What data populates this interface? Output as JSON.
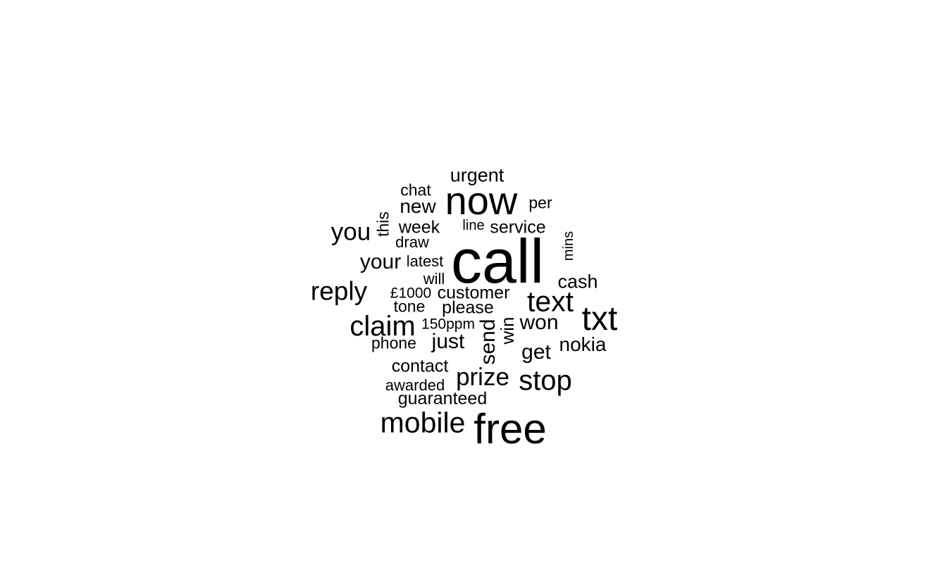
{
  "word_cloud": {
    "text_color": "#000000",
    "background_color": "#ffffff",
    "words": [
      {
        "text": "call",
        "rotated": false
      },
      {
        "text": "free",
        "rotated": false
      },
      {
        "text": "now",
        "rotated": false
      },
      {
        "text": "txt",
        "rotated": false
      },
      {
        "text": "mobile",
        "rotated": false
      },
      {
        "text": "text",
        "rotated": false
      },
      {
        "text": "claim",
        "rotated": false
      },
      {
        "text": "stop",
        "rotated": false
      },
      {
        "text": "reply",
        "rotated": false
      },
      {
        "text": "you",
        "rotated": false
      },
      {
        "text": "prize",
        "rotated": false
      },
      {
        "text": "your",
        "rotated": false
      },
      {
        "text": "new",
        "rotated": false
      },
      {
        "text": "urgent",
        "rotated": false
      },
      {
        "text": "won",
        "rotated": false
      },
      {
        "text": "get",
        "rotated": false
      },
      {
        "text": "just",
        "rotated": false
      },
      {
        "text": "send",
        "rotated": true
      },
      {
        "text": "nokia",
        "rotated": false
      },
      {
        "text": "cash",
        "rotated": false
      },
      {
        "text": "win",
        "rotated": true
      },
      {
        "text": "service",
        "rotated": false
      },
      {
        "text": "customer",
        "rotated": false
      },
      {
        "text": "contact",
        "rotated": false
      },
      {
        "text": "please",
        "rotated": false
      },
      {
        "text": "week",
        "rotated": false
      },
      {
        "text": "guaranteed",
        "rotated": false
      },
      {
        "text": "chat",
        "rotated": false
      },
      {
        "text": "per",
        "rotated": false
      },
      {
        "text": "tone",
        "rotated": false
      },
      {
        "text": "this",
        "rotated": true
      },
      {
        "text": "awarded",
        "rotated": false
      },
      {
        "text": "phone",
        "rotated": false
      },
      {
        "text": "draw",
        "rotated": false
      },
      {
        "text": "latest",
        "rotated": false
      },
      {
        "text": "will",
        "rotated": false
      },
      {
        "text": "150ppm",
        "rotated": false
      },
      {
        "text": "£1000",
        "rotated": false
      },
      {
        "text": "mins",
        "rotated": true
      },
      {
        "text": "line",
        "rotated": false
      }
    ]
  }
}
